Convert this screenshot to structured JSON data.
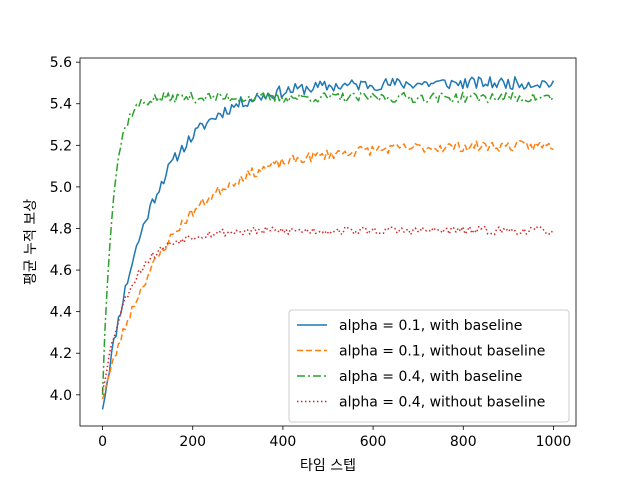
{
  "chart_data": {
    "type": "line",
    "title": "",
    "xlabel": "타임 스텝",
    "ylabel": "평균 누적 보상",
    "xlim": [
      -50,
      1050
    ],
    "ylim": [
      3.85,
      5.62
    ],
    "xticks": [
      0,
      200,
      400,
      600,
      800,
      1000
    ],
    "yticks": [
      4.0,
      4.2,
      4.4,
      4.6,
      4.8,
      5.0,
      5.2,
      5.4,
      5.6
    ],
    "xtick_labels": [
      "0",
      "200",
      "400",
      "600",
      "800",
      "1000"
    ],
    "ytick_labels": [
      "4.0",
      "4.2",
      "4.4",
      "4.6",
      "4.8",
      "5.0",
      "5.2",
      "5.4",
      "5.6"
    ],
    "grid": false,
    "legend_position": "lower-right",
    "n_points": 200,
    "x_start": 0,
    "x_end": 1000,
    "series": [
      {
        "name": "alpha = 0.1, with baseline",
        "color": "#1f77b4",
        "dash": "solid",
        "start": 3.93,
        "plateau": 5.5,
        "tau": 110,
        "noise": 0.03,
        "seed": 11
      },
      {
        "name": "alpha = 0.1, without baseline",
        "color": "#ff7f0e",
        "dash": "dashed",
        "start": 3.98,
        "plateau": 5.2,
        "tau": 150,
        "noise": 0.025,
        "seed": 23
      },
      {
        "name": "alpha = 0.4, with baseline",
        "color": "#2ca02c",
        "dash": "dashdot",
        "start": 4.0,
        "plateau": 5.43,
        "tau": 22,
        "noise": 0.025,
        "seed": 37
      },
      {
        "name": "alpha = 0.4, without baseline",
        "color": "#d62728",
        "dash": "dotted",
        "start": 4.02,
        "plateau": 4.79,
        "tau": 60,
        "noise": 0.02,
        "seed": 53
      }
    ]
  }
}
